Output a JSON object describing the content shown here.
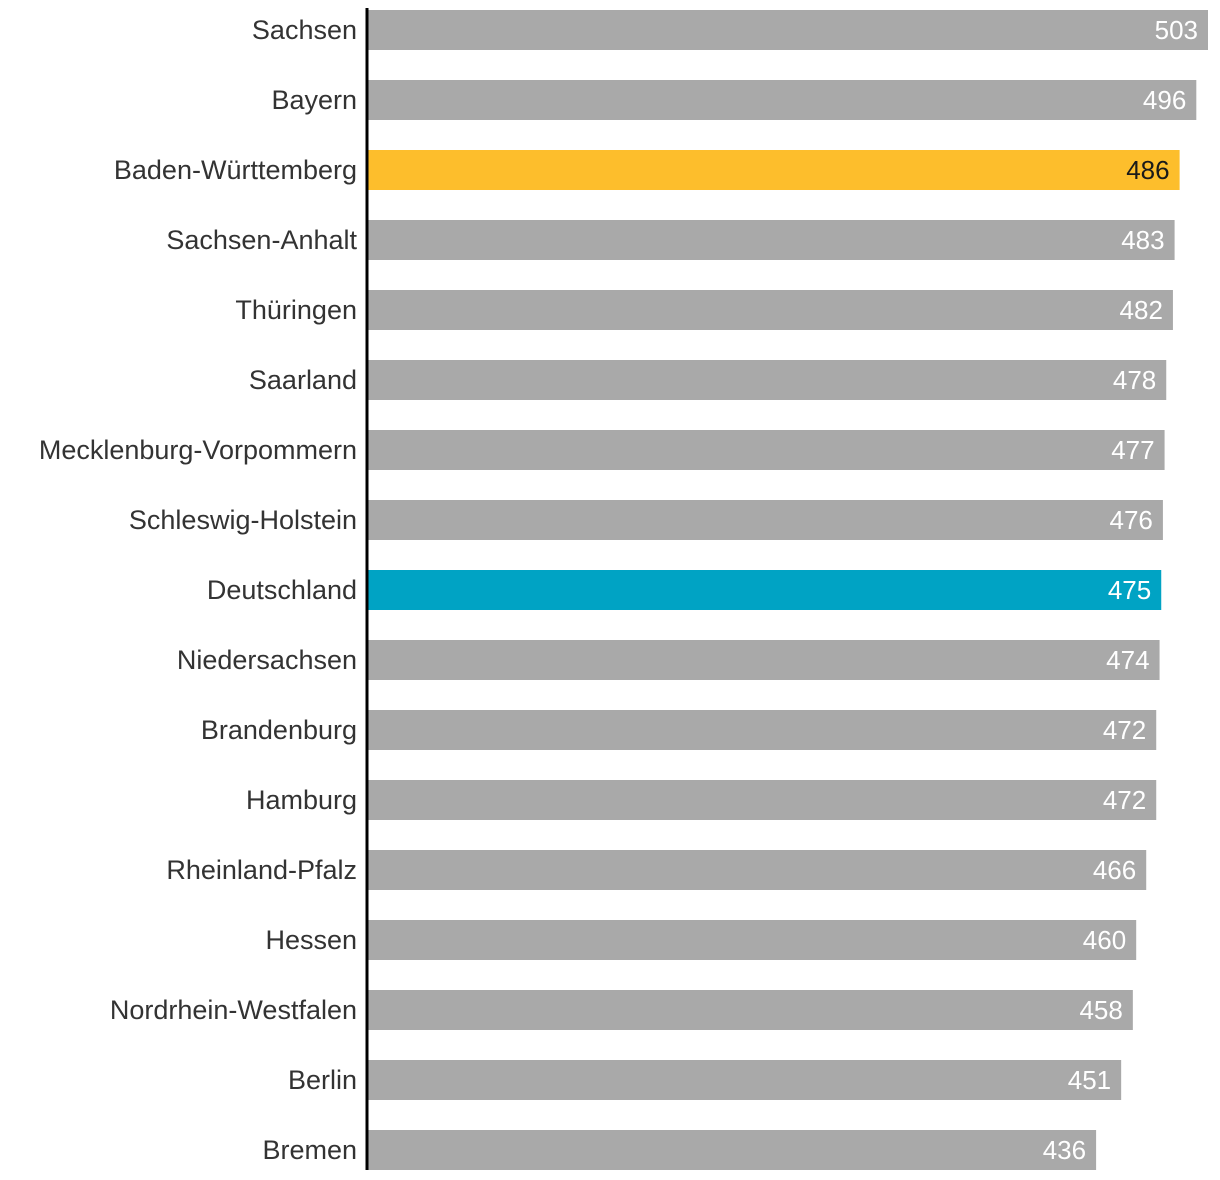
{
  "chart_data": {
    "type": "bar",
    "orientation": "horizontal",
    "title": "",
    "xlabel": "",
    "ylabel": "",
    "xlim": [
      0,
      503
    ],
    "grid": false,
    "categories": [
      "Sachsen",
      "Bayern",
      "Baden-Württemberg",
      "Sachsen-Anhalt",
      "Thüringen",
      "Saarland",
      "Mecklenburg-Vorpommern",
      "Schleswig-Holstein",
      "Deutschland",
      "Niedersachsen",
      "Brandenburg",
      "Hamburg",
      "Rheinland-Pfalz",
      "Hessen",
      "Nordrhein-Westfalen",
      "Berlin",
      "Bremen"
    ],
    "values": [
      503,
      496,
      486,
      483,
      482,
      478,
      477,
      476,
      475,
      474,
      472,
      472,
      466,
      460,
      458,
      451,
      436
    ],
    "highlights": {
      "Baden-Württemberg": "#FDBE2C",
      "Deutschland": "#00A3C4"
    },
    "default_color": "#A9A9A9",
    "axis_color": "#000000"
  }
}
